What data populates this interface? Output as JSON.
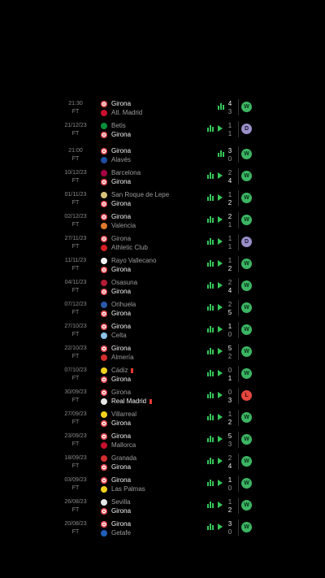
{
  "colors": {
    "win": "#3cb563",
    "draw": "#9a8fc7",
    "loss": "#e4473f",
    "accent": "#34c759"
  },
  "matches": [
    {
      "time": "21:30",
      "status": "FT",
      "home": {
        "name": "Girona",
        "crest": "girona-crest",
        "hl": true
      },
      "away": {
        "name": "Atl. Madrid",
        "crest": "atletico-crest",
        "hl": false
      },
      "score_home": "4",
      "score_away": "3",
      "result": "W",
      "play": false
    },
    {
      "time": "21/12/23",
      "status": "FT",
      "home": {
        "name": "Betis",
        "crest": "betis-crest",
        "hl": false
      },
      "away": {
        "name": "Girona",
        "crest": "girona-crest",
        "hl": true
      },
      "score_home": "1",
      "score_away": "1",
      "result": "D",
      "play": true
    },
    {
      "time": "21:00",
      "status": "FT",
      "home": {
        "name": "Girona",
        "crest": "girona-crest",
        "hl": true
      },
      "away": {
        "name": "Alavés",
        "crest": "alaves-crest",
        "hl": false
      },
      "score_home": "3",
      "score_away": "0",
      "result": "W",
      "play": false
    },
    {
      "time": "10/12/23",
      "status": "FT",
      "home": {
        "name": "Barcelona",
        "crest": "barcelona-crest",
        "hl": false
      },
      "away": {
        "name": "Girona",
        "crest": "girona-crest",
        "hl": true
      },
      "score_home": "2",
      "score_away": "4",
      "result": "W",
      "play": true
    },
    {
      "time": "01/11/23",
      "status": "FT",
      "home": {
        "name": "San Roque de Lepe",
        "crest": "san-roque-crest",
        "hl": false
      },
      "away": {
        "name": "Girona",
        "crest": "girona-crest",
        "hl": true
      },
      "score_home": "1",
      "score_away": "2",
      "result": "W",
      "play": true
    },
    {
      "time": "02/12/23",
      "status": "FT",
      "home": {
        "name": "Girona",
        "crest": "girona-crest",
        "hl": true
      },
      "away": {
        "name": "Valencia",
        "crest": "valencia-crest",
        "hl": false
      },
      "score_home": "2",
      "score_away": "1",
      "result": "W",
      "play": true
    },
    {
      "time": "27/11/23",
      "status": "FT",
      "home": {
        "name": "Girona",
        "crest": "girona-crest",
        "hl": false
      },
      "away": {
        "name": "Athletic Club",
        "crest": "athletic-crest",
        "hl": false
      },
      "score_home": "1",
      "score_away": "1",
      "result": "D",
      "play": true
    },
    {
      "time": "11/11/23",
      "status": "FT",
      "home": {
        "name": "Rayo Vallecano",
        "crest": "rayo-crest",
        "hl": false
      },
      "away": {
        "name": "Girona",
        "crest": "girona-crest",
        "hl": true
      },
      "score_home": "1",
      "score_away": "2",
      "result": "W",
      "play": true
    },
    {
      "time": "04/11/23",
      "status": "FT",
      "home": {
        "name": "Osasuna",
        "crest": "osasuna-crest",
        "hl": false
      },
      "away": {
        "name": "Girona",
        "crest": "girona-crest",
        "hl": true
      },
      "score_home": "2",
      "score_away": "4",
      "result": "W",
      "play": true
    },
    {
      "time": "07/12/23",
      "status": "FT",
      "home": {
        "name": "Orihuela",
        "crest": "orihuela-crest",
        "hl": false
      },
      "away": {
        "name": "Girona",
        "crest": "girona-crest",
        "hl": true
      },
      "score_home": "2",
      "score_away": "5",
      "result": "W",
      "play": true
    },
    {
      "time": "27/10/23",
      "status": "FT",
      "home": {
        "name": "Girona",
        "crest": "girona-crest",
        "hl": true
      },
      "away": {
        "name": "Celta",
        "crest": "celta-crest",
        "hl": false
      },
      "score_home": "1",
      "score_away": "0",
      "result": "W",
      "play": true
    },
    {
      "time": "22/10/23",
      "status": "FT",
      "home": {
        "name": "Girona",
        "crest": "girona-crest",
        "hl": true
      },
      "away": {
        "name": "Almería",
        "crest": "almeria-crest",
        "hl": false
      },
      "score_home": "5",
      "score_away": "2",
      "result": "W",
      "play": true
    },
    {
      "time": "07/10/23",
      "status": "FT",
      "home": {
        "name": "Cádiz",
        "crest": "cadiz-crest",
        "hl": false,
        "card": true
      },
      "away": {
        "name": "Girona",
        "crest": "girona-crest",
        "hl": true
      },
      "score_home": "0",
      "score_away": "1",
      "result": "W",
      "play": true
    },
    {
      "time": "30/09/23",
      "status": "FT",
      "home": {
        "name": "Girona",
        "crest": "girona-crest",
        "hl": false
      },
      "away": {
        "name": "Real Madrid",
        "crest": "real-madrid-crest",
        "hl": true,
        "card": true
      },
      "score_home": "0",
      "score_away": "3",
      "result": "L",
      "play": true
    },
    {
      "time": "27/09/23",
      "status": "FT",
      "home": {
        "name": "Villarreal",
        "crest": "villarreal-crest",
        "hl": false
      },
      "away": {
        "name": "Girona",
        "crest": "girona-crest",
        "hl": true
      },
      "score_home": "1",
      "score_away": "2",
      "result": "W",
      "play": true
    },
    {
      "time": "23/09/23",
      "status": "FT",
      "home": {
        "name": "Girona",
        "crest": "girona-crest",
        "hl": true
      },
      "away": {
        "name": "Mallorca",
        "crest": "mallorca-crest",
        "hl": false
      },
      "score_home": "5",
      "score_away": "3",
      "result": "W",
      "play": true
    },
    {
      "time": "18/09/23",
      "status": "FT",
      "home": {
        "name": "Granada",
        "crest": "granada-crest",
        "hl": false
      },
      "away": {
        "name": "Girona",
        "crest": "girona-crest",
        "hl": true
      },
      "score_home": "2",
      "score_away": "4",
      "result": "W",
      "play": true
    },
    {
      "time": "03/09/23",
      "status": "FT",
      "home": {
        "name": "Girona",
        "crest": "girona-crest",
        "hl": true
      },
      "away": {
        "name": "Las Palmas",
        "crest": "las-palmas-crest",
        "hl": false
      },
      "score_home": "1",
      "score_away": "0",
      "result": "W",
      "play": true
    },
    {
      "time": "26/08/23",
      "status": "FT",
      "home": {
        "name": "Sevilla",
        "crest": "sevilla-crest",
        "hl": false
      },
      "away": {
        "name": "Girona",
        "crest": "girona-crest",
        "hl": true
      },
      "score_home": "1",
      "score_away": "2",
      "result": "W",
      "play": true
    },
    {
      "time": "20/08/23",
      "status": "FT",
      "home": {
        "name": "Girona",
        "crest": "girona-crest",
        "hl": true
      },
      "away": {
        "name": "Getafe",
        "crest": "getafe-crest",
        "hl": false
      },
      "score_home": "3",
      "score_away": "0",
      "result": "W",
      "play": true
    }
  ]
}
